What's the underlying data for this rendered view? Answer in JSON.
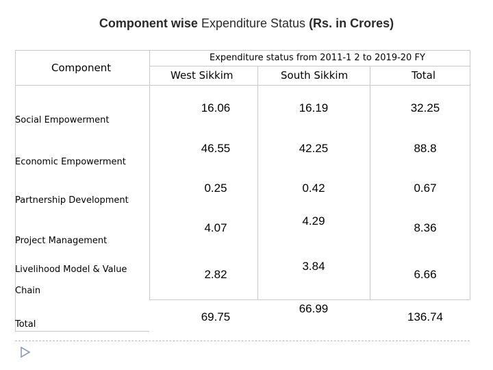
{
  "title": {
    "part1": "Component wise",
    "part2": "Expenditure Status",
    "part3": "(Rs. in  Crores)"
  },
  "headers": {
    "component": "Component",
    "group": "Expenditure status from 2011-1 2 to 2019-20 FY",
    "col1": "West Sikkim",
    "col2": "South Sikkim",
    "col3": "Total"
  },
  "rows": [
    {
      "label": "Social Empowerment",
      "label2": "",
      "west": "16.06",
      "south": "16.19",
      "total": "32.25"
    },
    {
      "label": "Economic Empowerment",
      "label2": "",
      "west": "46.55",
      "south": "42.25",
      "total": "88.8"
    },
    {
      "label": "Partnership Development",
      "label2": "",
      "west": "0.25",
      "south": "0.42",
      "total": "0.67"
    },
    {
      "label": "Project Management",
      "label2": "",
      "west": "4.07",
      "south": "4.29",
      "total": "8.36"
    },
    {
      "label": "Livelihood Model & Value",
      "label2": "Chain",
      "west": "2.82",
      "south": "3.84",
      "total": "6.66"
    },
    {
      "label": "Total",
      "label2": "",
      "west": "69.75",
      "south": "66.99",
      "total": "136.74"
    }
  ]
}
